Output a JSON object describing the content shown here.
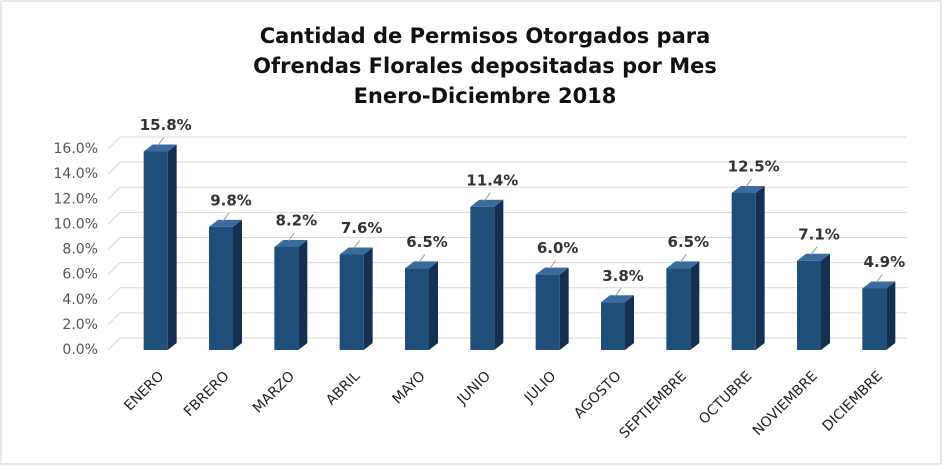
{
  "chart_data": {
    "type": "bar",
    "title": [
      "Cantidad de Permisos Otorgados para",
      "Ofrendas Florales depositadas por Mes",
      "Enero-Diciembre 2018"
    ],
    "categories": [
      "ENERO",
      "FBRERO",
      "MARZO",
      "ABRIL",
      "MAYO",
      "JUNIO",
      "JULIO",
      "AGOSTO",
      "SEPTIEMBRE",
      "OCTUBRE",
      "NOVIEMBRE",
      "DICIEMBRE"
    ],
    "values": [
      15.8,
      9.8,
      8.2,
      7.6,
      6.5,
      11.4,
      6.0,
      3.8,
      6.5,
      12.5,
      7.1,
      4.9
    ],
    "value_labels": [
      "15.8%",
      "9.8%",
      "8.2%",
      "7.6%",
      "6.5%",
      "11.4%",
      "6.0%",
      "3.8%",
      "6.5%",
      "12.5%",
      "7.1%",
      "4.9%"
    ],
    "color": "#1f4e79",
    "ylim": [
      0,
      16
    ],
    "yticks": [
      {
        "value": 0,
        "label": "0.0%"
      },
      {
        "value": 2,
        "label": "2.0%"
      },
      {
        "value": 4,
        "label": "4.0%"
      },
      {
        "value": 6,
        "label": "6.0%"
      },
      {
        "value": 8,
        "label": "8.0%"
      },
      {
        "value": 10,
        "label": "10.0%"
      },
      {
        "value": 12,
        "label": "12.0%"
      },
      {
        "value": 14,
        "label": "14.0%"
      },
      {
        "value": 16,
        "label": "16.0%"
      }
    ],
    "grid": true
  }
}
